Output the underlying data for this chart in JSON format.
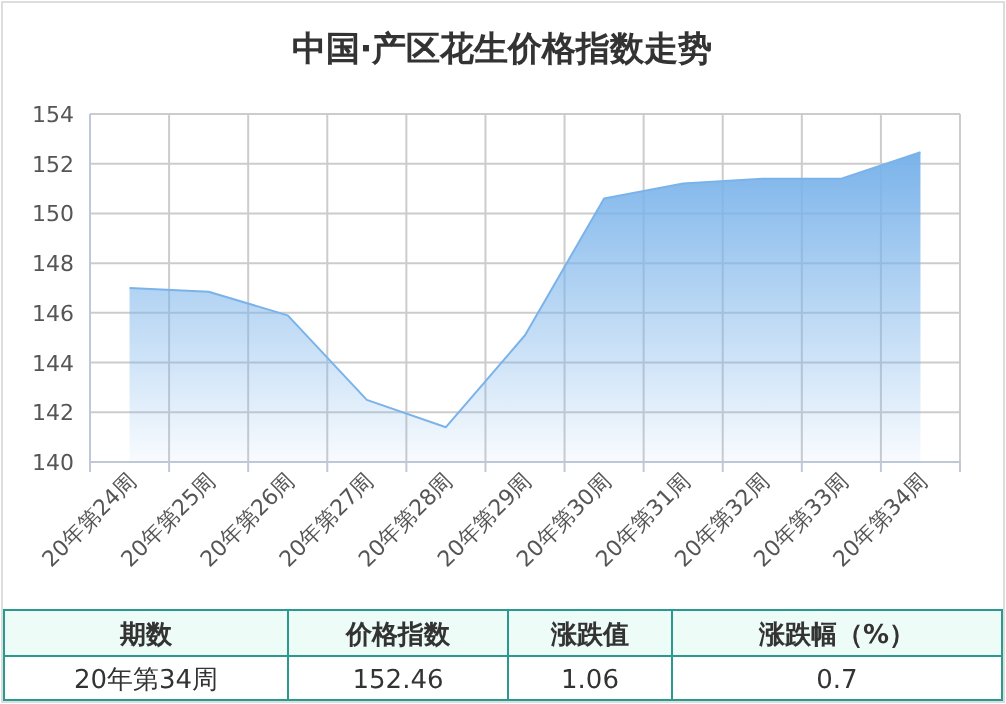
{
  "chart_data": {
    "type": "area",
    "title": "中国·产区花生价格指数走势",
    "categories": [
      "20年第24周",
      "20年第25周",
      "20年第26周",
      "20年第27周",
      "20年第28周",
      "20年第29周",
      "20年第30周",
      "20年第31周",
      "20年第32周",
      "20年第33周",
      "20年第34周"
    ],
    "series": [
      {
        "color": "#7ab3ea",
        "values": [
          147.0,
          146.85,
          145.9,
          142.5,
          141.4,
          145.1,
          150.6,
          151.2,
          151.4,
          151.4,
          152.46
        ]
      }
    ],
    "ylim": [
      140,
      154
    ],
    "yticks": [
      140,
      142,
      144,
      146,
      148,
      150,
      152,
      154
    ],
    "grid": true,
    "annotations": [
      "期数",
      "价格指数",
      "涨跌值",
      "涨跌幅（%）",
      "20年第34周",
      "152.46",
      "1.06",
      "0.7"
    ]
  }
}
